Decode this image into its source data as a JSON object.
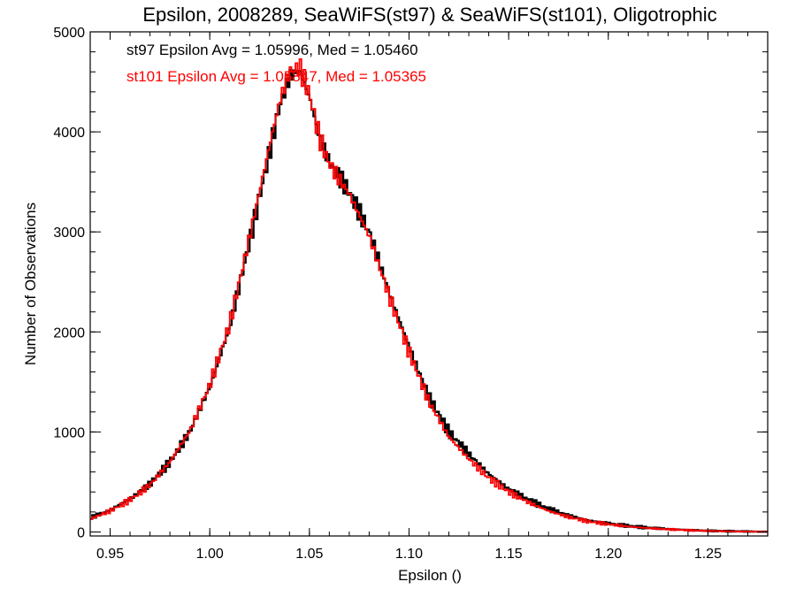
{
  "chart_data": {
    "type": "line",
    "title": "Epsilon, 2008289, SeaWiFS(st97) & SeaWiFS(st101), Oligotrophic",
    "xlabel": "Epsilon ()",
    "ylabel": "Number of Observations",
    "xlim": [
      0.94,
      1.28
    ],
    "ylim": [
      -40,
      5000
    ],
    "xticks": [
      "0.95",
      "1.00",
      "1.05",
      "1.10",
      "1.15",
      "1.20",
      "1.25"
    ],
    "yticks": [
      "0",
      "1000",
      "2000",
      "3000",
      "4000",
      "5000"
    ],
    "grid": false,
    "step": true,
    "series": [
      {
        "name": "st97",
        "color": "#000000",
        "annotation": "st97 Epsilon Avg = 1.05996, Med = 1.05460",
        "x": [
          0.94,
          0.95,
          0.96,
          0.97,
          0.98,
          0.99,
          1.0,
          1.01,
          1.02,
          1.03,
          1.035,
          1.04,
          1.045,
          1.05,
          1.055,
          1.06,
          1.07,
          1.08,
          1.09,
          1.1,
          1.11,
          1.12,
          1.13,
          1.14,
          1.15,
          1.16,
          1.17,
          1.18,
          1.19,
          1.2,
          1.21,
          1.22,
          1.23,
          1.24,
          1.25,
          1.26,
          1.27,
          1.28
        ],
        "y": [
          140,
          220,
          330,
          480,
          700,
          1000,
          1450,
          2050,
          2900,
          3800,
          4250,
          4550,
          4620,
          4350,
          3950,
          3700,
          3400,
          3000,
          2400,
          1850,
          1350,
          1000,
          780,
          580,
          430,
          320,
          230,
          165,
          115,
          85,
          60,
          42,
          30,
          20,
          12,
          8,
          5,
          3
        ]
      },
      {
        "name": "st101",
        "color": "#ff0000",
        "annotation": "st101 Epsilon Avg = 1.05847, Med = 1.05365",
        "x": [
          0.94,
          0.95,
          0.96,
          0.97,
          0.98,
          0.99,
          1.0,
          1.01,
          1.02,
          1.03,
          1.035,
          1.04,
          1.045,
          1.05,
          1.055,
          1.06,
          1.07,
          1.08,
          1.09,
          1.1,
          1.11,
          1.12,
          1.13,
          1.14,
          1.15,
          1.16,
          1.17,
          1.18,
          1.19,
          1.2,
          1.21,
          1.22,
          1.23,
          1.24,
          1.25,
          1.26,
          1.27,
          1.28
        ],
        "y": [
          130,
          210,
          320,
          470,
          700,
          1010,
          1470,
          2080,
          2950,
          3860,
          4300,
          4600,
          4650,
          4380,
          3950,
          3680,
          3380,
          2960,
          2360,
          1800,
          1300,
          950,
          730,
          540,
          400,
          295,
          210,
          150,
          105,
          78,
          55,
          38,
          27,
          18,
          11,
          7,
          4,
          2
        ]
      }
    ]
  }
}
